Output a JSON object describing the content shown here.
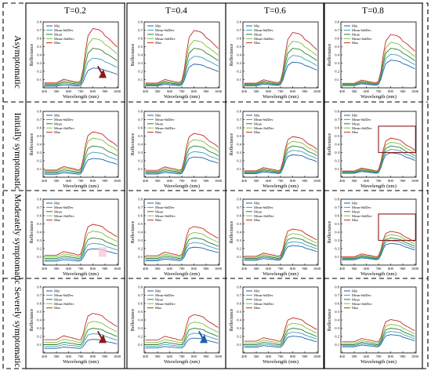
{
  "columns": [
    "T=0.2",
    "T=0.4",
    "T=0.6",
    "T=0.8"
  ],
  "rows": [
    "Asymptomatic",
    "Initially symptomatic",
    "Moderately symptomatic",
    "Severely symptomatic"
  ],
  "colors": {
    "Min": "#1f5fa8",
    "Mean-StdDev": "#3aa0b8",
    "Mean": "#2e7d32",
    "Mean+StdDev": "#7cbf3a",
    "Max": "#c62828",
    "highlight_box": "#8b1a1a",
    "arrow_red": "#8b1a1a",
    "arrow_blue": "#1f5fa8",
    "marker_pink": "#f8c8d8"
  },
  "chart_data": {
    "type": "line",
    "layout": "4x4 small multiples",
    "xlabel": "Wavelength (nm)",
    "ylabel": "Reflectance",
    "xlim": [
      390,
      1010
    ],
    "ylim": [
      0.0,
      0.8
    ],
    "xticks": [
      "400",
      "500",
      "600",
      "700",
      "800",
      "900",
      "1000"
    ],
    "yticks": [
      "0.1",
      "0.2",
      "0.3",
      "0.4",
      "0.5",
      "0.6",
      "0.7",
      "0.8"
    ],
    "legend": [
      "Min",
      "Mean-StdDev",
      "Mean",
      "Mean+StdDev",
      "Max"
    ],
    "legend_position": "top-left",
    "x": [
      400,
      450,
      500,
      540,
      560,
      600,
      650,
      680,
      700,
      720,
      740,
      760,
      800,
      850,
      880,
      900,
      930,
      950,
      980,
      1000
    ],
    "panels": [
      {
        "row": 0,
        "col": 0,
        "base": [
          0.04,
          0.04,
          0.04,
          0.06,
          0.07,
          0.06,
          0.05,
          0.045,
          0.06,
          0.15,
          0.3,
          0.42,
          0.48,
          0.47,
          0.45,
          0.42,
          0.4,
          0.38,
          0.35,
          0.33
        ],
        "scales": [
          0.5,
          0.75,
          1.0,
          1.25,
          1.5
        ],
        "annotation": "red-arrow"
      },
      {
        "row": 0,
        "col": 1,
        "base": [
          0.04,
          0.04,
          0.04,
          0.06,
          0.07,
          0.06,
          0.05,
          0.045,
          0.06,
          0.15,
          0.3,
          0.42,
          0.48,
          0.47,
          0.45,
          0.42,
          0.4,
          0.38,
          0.35,
          0.33
        ],
        "scales": [
          0.6,
          0.8,
          1.0,
          1.2,
          1.45
        ]
      },
      {
        "row": 0,
        "col": 2,
        "base": [
          0.04,
          0.04,
          0.04,
          0.06,
          0.07,
          0.06,
          0.05,
          0.045,
          0.06,
          0.15,
          0.3,
          0.42,
          0.48,
          0.47,
          0.45,
          0.42,
          0.4,
          0.38,
          0.35,
          0.33
        ],
        "scales": [
          0.65,
          0.82,
          1.0,
          1.18,
          1.4
        ]
      },
      {
        "row": 0,
        "col": 3,
        "base": [
          0.04,
          0.04,
          0.04,
          0.06,
          0.07,
          0.06,
          0.05,
          0.045,
          0.06,
          0.15,
          0.3,
          0.42,
          0.48,
          0.47,
          0.45,
          0.42,
          0.4,
          0.38,
          0.35,
          0.33
        ],
        "scales": [
          0.7,
          0.85,
          1.0,
          1.15,
          1.35
        ]
      },
      {
        "row": 1,
        "col": 0,
        "base": [
          0.06,
          0.06,
          0.06,
          0.08,
          0.09,
          0.08,
          0.07,
          0.06,
          0.07,
          0.15,
          0.27,
          0.35,
          0.38,
          0.37,
          0.36,
          0.34,
          0.31,
          0.3,
          0.28,
          0.26
        ],
        "scales": [
          0.6,
          0.8,
          1.0,
          1.25,
          1.45
        ]
      },
      {
        "row": 1,
        "col": 1,
        "base": [
          0.06,
          0.06,
          0.06,
          0.08,
          0.09,
          0.08,
          0.07,
          0.06,
          0.07,
          0.15,
          0.27,
          0.35,
          0.38,
          0.37,
          0.36,
          0.34,
          0.31,
          0.3,
          0.28,
          0.26
        ],
        "scales": [
          0.65,
          0.82,
          1.0,
          1.2,
          1.4
        ]
      },
      {
        "row": 1,
        "col": 2,
        "base": [
          0.06,
          0.06,
          0.06,
          0.08,
          0.09,
          0.08,
          0.07,
          0.06,
          0.07,
          0.15,
          0.27,
          0.35,
          0.38,
          0.37,
          0.36,
          0.34,
          0.31,
          0.3,
          0.28,
          0.26
        ],
        "scales": [
          0.72,
          0.86,
          1.0,
          1.15,
          1.3
        ]
      },
      {
        "row": 1,
        "col": 3,
        "base": [
          0.06,
          0.06,
          0.06,
          0.08,
          0.09,
          0.08,
          0.07,
          0.06,
          0.07,
          0.15,
          0.27,
          0.35,
          0.38,
          0.37,
          0.36,
          0.34,
          0.31,
          0.3,
          0.28,
          0.26
        ],
        "scales": [
          0.78,
          0.89,
          1.0,
          1.12,
          1.25
        ],
        "annotation": "box"
      },
      {
        "row": 2,
        "col": 0,
        "base": [
          0.08,
          0.08,
          0.08,
          0.1,
          0.11,
          0.1,
          0.09,
          0.08,
          0.09,
          0.15,
          0.25,
          0.31,
          0.33,
          0.32,
          0.31,
          0.29,
          0.27,
          0.26,
          0.24,
          0.23
        ],
        "scales": [
          0.6,
          0.8,
          1.0,
          1.25,
          1.5
        ],
        "annotation": "pink-marker"
      },
      {
        "row": 2,
        "col": 1,
        "base": [
          0.08,
          0.08,
          0.08,
          0.1,
          0.11,
          0.1,
          0.09,
          0.08,
          0.09,
          0.15,
          0.25,
          0.31,
          0.33,
          0.32,
          0.31,
          0.29,
          0.27,
          0.26,
          0.24,
          0.23
        ],
        "scales": [
          0.66,
          0.83,
          1.0,
          1.2,
          1.42
        ]
      },
      {
        "row": 2,
        "col": 2,
        "base": [
          0.08,
          0.08,
          0.08,
          0.1,
          0.11,
          0.1,
          0.09,
          0.08,
          0.09,
          0.15,
          0.25,
          0.31,
          0.33,
          0.32,
          0.31,
          0.29,
          0.27,
          0.26,
          0.24,
          0.23
        ],
        "scales": [
          0.72,
          0.86,
          1.0,
          1.16,
          1.33
        ]
      },
      {
        "row": 2,
        "col": 3,
        "base": [
          0.08,
          0.08,
          0.08,
          0.1,
          0.11,
          0.1,
          0.09,
          0.08,
          0.09,
          0.15,
          0.25,
          0.31,
          0.33,
          0.32,
          0.31,
          0.29,
          0.27,
          0.26,
          0.24,
          0.23
        ],
        "scales": [
          0.8,
          0.9,
          1.0,
          1.12,
          1.24
        ],
        "annotation": "box"
      },
      {
        "row": 3,
        "col": 0,
        "base": [
          0.1,
          0.1,
          0.1,
          0.12,
          0.13,
          0.12,
          0.11,
          0.1,
          0.1,
          0.14,
          0.22,
          0.28,
          0.3,
          0.29,
          0.28,
          0.26,
          0.24,
          0.23,
          0.21,
          0.2
        ],
        "scales": [
          0.55,
          0.78,
          1.0,
          1.28,
          1.6
        ],
        "annotation": "red-arrow"
      },
      {
        "row": 3,
        "col": 1,
        "base": [
          0.1,
          0.1,
          0.1,
          0.12,
          0.13,
          0.12,
          0.11,
          0.1,
          0.1,
          0.14,
          0.22,
          0.28,
          0.3,
          0.29,
          0.28,
          0.26,
          0.24,
          0.23,
          0.21,
          0.2
        ],
        "scales": [
          0.6,
          0.8,
          1.0,
          1.25,
          1.55
        ],
        "annotation": "blue-arrow"
      },
      {
        "row": 3,
        "col": 2,
        "base": [
          0.1,
          0.1,
          0.1,
          0.12,
          0.13,
          0.12,
          0.11,
          0.1,
          0.1,
          0.14,
          0.22,
          0.28,
          0.3,
          0.29,
          0.28,
          0.26,
          0.24,
          0.23,
          0.21,
          0.2
        ],
        "scales": [
          0.68,
          0.84,
          1.0,
          1.2,
          1.42
        ]
      },
      {
        "row": 3,
        "col": 3,
        "base": [
          0.1,
          0.1,
          0.1,
          0.12,
          0.13,
          0.12,
          0.11,
          0.1,
          0.1,
          0.14,
          0.22,
          0.28,
          0.3,
          0.29,
          0.28,
          0.26,
          0.24,
          0.23,
          0.21,
          0.2
        ],
        "scales": [
          0.74,
          0.87,
          1.0,
          1.16,
          1.35
        ]
      }
    ]
  }
}
